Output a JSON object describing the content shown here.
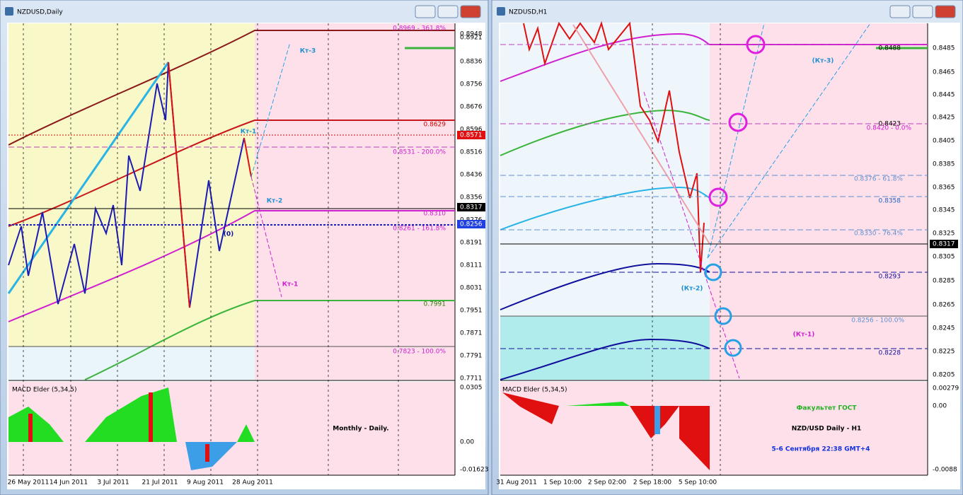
{
  "windows": [
    {
      "title": "NZDUSD,Daily",
      "price_ticks": [
        "0.8921",
        "0.8836",
        "0.8756",
        "0.8676",
        "0.8596",
        "0.8516",
        "0.8436",
        "0.8356",
        "0.8276",
        "0.8191",
        "0.8111",
        "0.8031",
        "0.7951",
        "0.7871",
        "0.7791",
        "0.7711"
      ],
      "price_marks": [
        "0.8948",
        "0.8571",
        "0.8317",
        "0.8256"
      ],
      "levels": [
        "0.8969 - 361.8%",
        "0.8629",
        "0.8531 - 200.0%",
        "0.8310",
        "0.8261 - 161.8%",
        "0.7991",
        "0.7823 - 100.0%"
      ],
      "annotations": [
        "Кт-3",
        "Кт-1",
        "Кт-2",
        "(0)",
        "Кт-1"
      ],
      "indicator": {
        "name": "MACD Elder (5,34,5)",
        "ticks": [
          "0.0305",
          "0.00",
          "-0.01623"
        ]
      },
      "notes": [
        "Monthly - Daily."
      ],
      "dates": [
        "26 May 2011",
        "14 Jun 2011",
        "3 Jul 2011",
        "21 Jul 2011",
        "9 Aug 2011",
        "28 Aug 2011"
      ]
    },
    {
      "title": "NZDUSD,H1",
      "price_ticks": [
        "0.8485",
        "0.8465",
        "0.8445",
        "0.8425",
        "0.8405",
        "0.8385",
        "0.8365",
        "0.8345",
        "0.8325",
        "0.8305",
        "0.8285",
        "0.8265",
        "0.8245",
        "0.8225",
        "0.8205"
      ],
      "price_marks": [
        "0.8317"
      ],
      "levels": [
        "0.8488",
        "0.8423",
        "0.8420 - 0.0%",
        "0.8376 - 61.8%",
        "0.8358",
        "0.8330 - 76.4%",
        "0.8293",
        "0.8256 - 100.0%",
        "0.8228"
      ],
      "annotations": [
        "(Кт-3)",
        "(Кт-2)",
        "(Кт-1)"
      ],
      "indicator": {
        "name": "MACD Elder (5,34,5)",
        "ticks": [
          "0.00279",
          "0.00",
          "-0.0088"
        ]
      },
      "notes": [
        "Факультет ГОСТ",
        "NZD/USD Daily - H1",
        "5-6 Сентября 22:38 GMT+4"
      ],
      "dates": [
        "31 Aug 2011",
        "1 Sep 10:00",
        "2 Sep 02:00",
        "2 Sep 18:00",
        "5 Sep 10:00"
      ]
    }
  ]
}
